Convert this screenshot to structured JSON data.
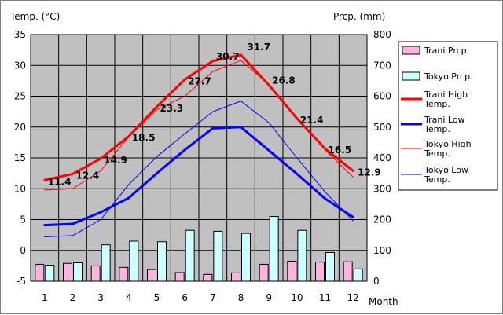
{
  "chart_data": {
    "type": "line",
    "title": "",
    "xlabel": "Month",
    "ylabel_left": "Temp. (°C)",
    "ylabel_right": "Prcp. (mm)",
    "categories": [
      "1",
      "2",
      "3",
      "4",
      "5",
      "6",
      "7",
      "8",
      "9",
      "10",
      "11",
      "12"
    ],
    "temp_axis": {
      "ylim": [
        -5,
        35
      ],
      "ticks": [
        -5,
        0,
        5,
        10,
        15,
        20,
        25,
        30,
        35
      ]
    },
    "prcp_axis": {
      "ylim": [
        0,
        800
      ],
      "ticks": [
        0,
        100,
        200,
        300,
        400,
        500,
        600,
        700,
        800
      ]
    },
    "grid": true,
    "legend_position": "right",
    "series": [
      {
        "name": "Trani Prcp.",
        "kind": "bar",
        "axis": "prcp",
        "color": "#FFB3DE",
        "values": [
          55,
          58,
          50,
          45,
          38,
          28,
          22,
          27,
          55,
          65,
          62,
          63
        ]
      },
      {
        "name": "Tokyo Prcp.",
        "kind": "bar",
        "axis": "prcp",
        "color": "#CCFFFF",
        "values": [
          52,
          60,
          118,
          130,
          128,
          165,
          162,
          155,
          210,
          165,
          93,
          40
        ]
      },
      {
        "name": "Trani High Temp.",
        "kind": "line",
        "axis": "temp",
        "color": "#FF0000",
        "width": "thick",
        "values": [
          11.4,
          12.4,
          14.9,
          18.5,
          23.3,
          27.7,
          30.7,
          31.7,
          26.8,
          21.4,
          16.5,
          12.9
        ],
        "labels": [
          "11.4",
          "12.4",
          "14.9",
          "18.5",
          "23.3",
          "27.7",
          "30.7",
          "31.7",
          "26.8",
          "21.4",
          "16.5",
          "12.9"
        ]
      },
      {
        "name": "Trani Low Temp.",
        "kind": "line",
        "axis": "temp",
        "color": "#0000FF",
        "width": "thick",
        "values": [
          4.1,
          4.3,
          6.2,
          8.5,
          12.5,
          16.3,
          19.8,
          20.0,
          16.2,
          12.4,
          8.4,
          5.4
        ]
      },
      {
        "name": "Tokyo High Temp.",
        "kind": "line",
        "axis": "temp",
        "color": "#FF0000",
        "width": "thin",
        "values": [
          9.8,
          10.0,
          12.9,
          18.4,
          22.8,
          25.0,
          29.0,
          30.8,
          26.9,
          21.5,
          16.3,
          11.9
        ]
      },
      {
        "name": "Tokyo Low Temp.",
        "kind": "line",
        "axis": "temp",
        "color": "#0000FF",
        "width": "thin",
        "values": [
          2.2,
          2.4,
          5.0,
          10.7,
          15.2,
          18.9,
          22.5,
          24.2,
          20.7,
          15.0,
          9.5,
          4.8
        ]
      }
    ]
  }
}
